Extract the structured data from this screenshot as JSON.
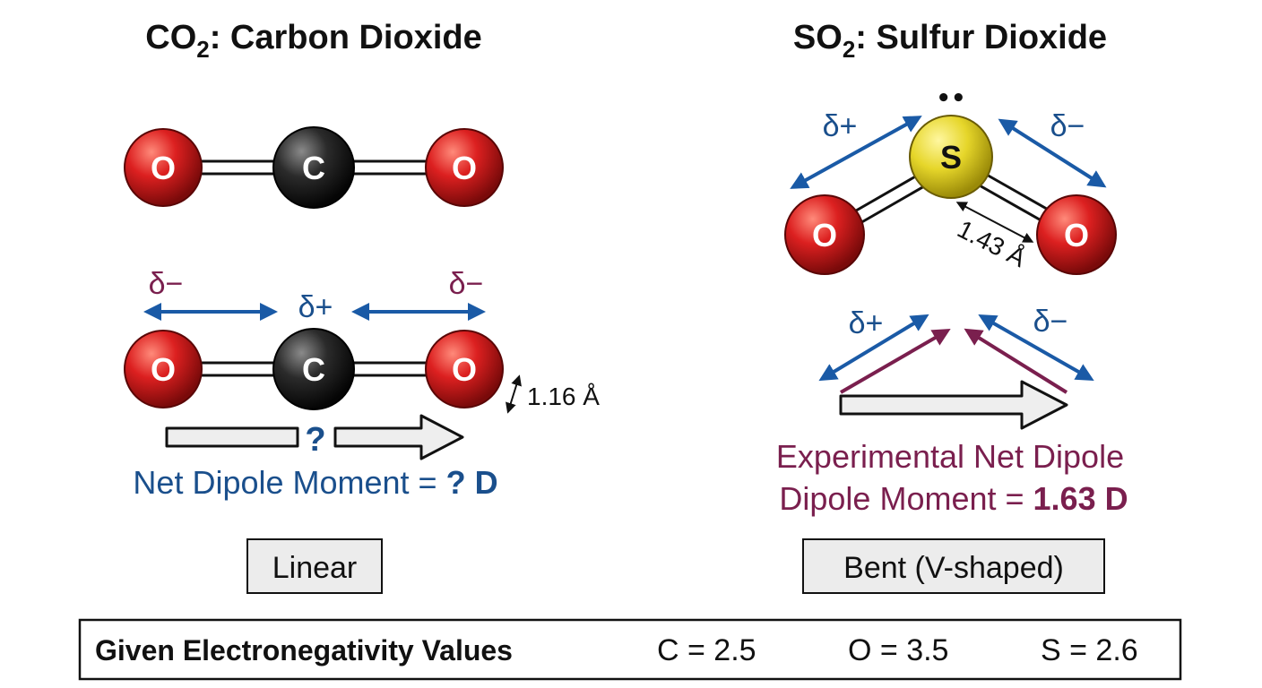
{
  "co2": {
    "title_main": "CO",
    "title_sub": "2",
    "title_rest": ": Carbon Dioxide",
    "atoms": {
      "oxygen": "O",
      "carbon": "C"
    },
    "partial_charges": {
      "left_oxygen": "δ−",
      "carbon": "δ+",
      "right_oxygen": "δ−"
    },
    "bond_length": "1.16 Å",
    "net_arrow_symbol": "?",
    "net_dipole_prefix": "Net Dipole Moment = ",
    "net_dipole_value": "? D",
    "shape": "Linear"
  },
  "so2": {
    "title_main": "SO",
    "title_sub": "2",
    "title_rest": ": Sulfur Dioxide",
    "atoms": {
      "sulfur": "S",
      "oxygen": "O"
    },
    "lone_pair": "••",
    "partial_charges_top": {
      "left": "δ+",
      "right": "δ−"
    },
    "bond_length": "1.43 Å",
    "partial_charges_vector": {
      "left": "δ+",
      "right": "δ−"
    },
    "experimental_line1": "Experimental Net Dipole",
    "experimental_line2_prefix": "Dipole Moment = ",
    "experimental_value": "1.63 D",
    "shape": "Bent (V-shaped)"
  },
  "electronegativity": {
    "label": "Given Electronegativity Values",
    "values": [
      "C = 2.5",
      "O = 3.5",
      "S = 2.6"
    ]
  },
  "colors": {
    "oxygen": "#d41f1f",
    "carbon": "#2a2a2a",
    "sulfur": "#e6d62a",
    "dipole_blue": "#1a5aa6",
    "purple": "#7a1f4e"
  }
}
